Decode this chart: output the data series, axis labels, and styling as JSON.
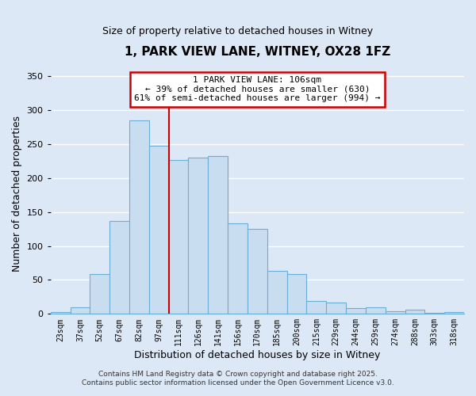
{
  "title": "1, PARK VIEW LANE, WITNEY, OX28 1FZ",
  "subtitle": "Size of property relative to detached houses in Witney",
  "xlabel": "Distribution of detached houses by size in Witney",
  "ylabel": "Number of detached properties",
  "bar_labels": [
    "23sqm",
    "37sqm",
    "52sqm",
    "67sqm",
    "82sqm",
    "97sqm",
    "111sqm",
    "126sqm",
    "141sqm",
    "156sqm",
    "170sqm",
    "185sqm",
    "200sqm",
    "215sqm",
    "229sqm",
    "244sqm",
    "259sqm",
    "274sqm",
    "288sqm",
    "303sqm",
    "318sqm"
  ],
  "bar_values": [
    3,
    10,
    59,
    137,
    285,
    248,
    226,
    230,
    232,
    133,
    125,
    63,
    59,
    19,
    17,
    9,
    10,
    4,
    6,
    2,
    3
  ],
  "bar_color": "#c9ddf0",
  "bar_edge_color": "#6baed6",
  "highlight_color": "#cc0000",
  "annotation_line1": "1 PARK VIEW LANE: 106sqm",
  "annotation_line2": "← 39% of detached houses are smaller (630)",
  "annotation_line3": "61% of semi-detached houses are larger (994) →",
  "annotation_box_color": "#cc0000",
  "ylim": [
    0,
    355
  ],
  "yticks": [
    0,
    50,
    100,
    150,
    200,
    250,
    300,
    350
  ],
  "footer_line1": "Contains HM Land Registry data © Crown copyright and database right 2025.",
  "footer_line2": "Contains public sector information licensed under the Open Government Licence v3.0.",
  "background_color": "#dce8f5",
  "plot_bg_color": "#dce8f5",
  "grid_color": "#ffffff"
}
